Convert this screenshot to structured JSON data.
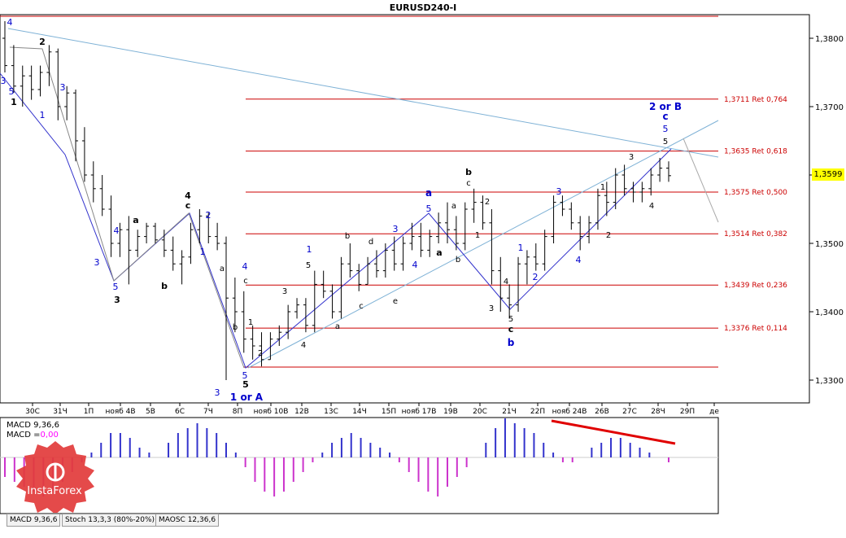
{
  "window": {
    "title": "EURUSD240-I"
  },
  "current_price": "1,3599",
  "chart_data": {
    "type": "candlestick",
    "symbol": "EURUSD240-I",
    "y_ticks": [
      "1,3800",
      "1,3700",
      "1,3600",
      "1,3500",
      "1,3400",
      "1,3300"
    ],
    "x_ticks": [
      "30С",
      "31Ч",
      "1П",
      "нояб 4В",
      "5В",
      "6С",
      "7Ч",
      "8П",
      "нояб 10В",
      "12В",
      "13С",
      "14Ч",
      "15П",
      "нояб 17В",
      "19В",
      "20С",
      "21Ч",
      "22П",
      "нояб 24В",
      "26В",
      "27С",
      "28Ч",
      "29П",
      "де"
    ],
    "fib_levels": [
      {
        "price": 1.3711,
        "label": "1,3711 Ret 0,764"
      },
      {
        "price": 1.3635,
        "label": "1,3635 Ret 0,618"
      },
      {
        "price": 1.3575,
        "label": "1,3575 Ret 0,500"
      },
      {
        "price": 1.3514,
        "label": "1,3514 Ret 0,382"
      },
      {
        "price": 1.3439,
        "label": "1,3439 Ret 0,236"
      },
      {
        "price": 1.3376,
        "label": "1,3376 Ret 0,114"
      }
    ],
    "ohlc": [
      [
        1.38,
        1.3825,
        1.375,
        1.376
      ],
      [
        1.376,
        1.379,
        1.372,
        1.373
      ],
      [
        1.373,
        1.376,
        1.37,
        1.3745
      ],
      [
        1.3745,
        1.376,
        1.371,
        1.3725
      ],
      [
        1.3725,
        1.376,
        1.3715,
        1.375
      ],
      [
        1.375,
        1.379,
        1.373,
        1.378
      ],
      [
        1.378,
        1.3785,
        1.368,
        1.37
      ],
      [
        1.37,
        1.373,
        1.368,
        1.372
      ],
      [
        1.372,
        1.3725,
        1.362,
        1.365
      ],
      [
        1.365,
        1.367,
        1.359,
        1.36
      ],
      [
        1.36,
        1.362,
        1.356,
        1.358
      ],
      [
        1.358,
        1.36,
        1.354,
        1.355
      ],
      [
        1.355,
        1.357,
        1.348,
        1.35
      ],
      [
        1.35,
        1.353,
        1.348,
        1.352
      ],
      [
        1.352,
        1.354,
        1.344,
        1.349
      ],
      [
        1.349,
        1.352,
        1.348,
        1.351
      ],
      [
        1.351,
        1.353,
        1.35,
        1.3525
      ],
      [
        1.3525,
        1.353,
        1.35,
        1.3505
      ],
      [
        1.3505,
        1.352,
        1.348,
        1.349
      ],
      [
        1.349,
        1.351,
        1.346,
        1.347
      ],
      [
        1.347,
        1.349,
        1.344,
        1.348
      ],
      [
        1.348,
        1.353,
        1.347,
        1.352
      ],
      [
        1.352,
        1.355,
        1.35,
        1.354
      ],
      [
        1.354,
        1.3545,
        1.35,
        1.351
      ],
      [
        1.351,
        1.353,
        1.349,
        1.35
      ],
      [
        1.35,
        1.351,
        1.33,
        1.342
      ],
      [
        1.342,
        1.345,
        1.337,
        1.34
      ],
      [
        1.34,
        1.343,
        1.334,
        1.336
      ],
      [
        1.336,
        1.338,
        1.333,
        1.335
      ],
      [
        1.335,
        1.337,
        1.332,
        1.333
      ],
      [
        1.333,
        1.337,
        1.333,
        1.336
      ],
      [
        1.336,
        1.338,
        1.335,
        1.337
      ],
      [
        1.337,
        1.341,
        1.336,
        1.34
      ],
      [
        1.34,
        1.342,
        1.339,
        1.341
      ],
      [
        1.341,
        1.342,
        1.337,
        1.338
      ],
      [
        1.338,
        1.346,
        1.337,
        1.344
      ],
      [
        1.344,
        1.346,
        1.342,
        1.343
      ],
      [
        1.343,
        1.344,
        1.339,
        1.34
      ],
      [
        1.34,
        1.348,
        1.339,
        1.347
      ],
      [
        1.347,
        1.35,
        1.345,
        1.346
      ],
      [
        1.346,
        1.347,
        1.343,
        1.344
      ],
      [
        1.344,
        1.348,
        1.344,
        1.347
      ],
      [
        1.347,
        1.349,
        1.345,
        1.346
      ],
      [
        1.346,
        1.35,
        1.345,
        1.349
      ],
      [
        1.349,
        1.351,
        1.346,
        1.347
      ],
      [
        1.347,
        1.351,
        1.346,
        1.35
      ],
      [
        1.35,
        1.353,
        1.349,
        1.351
      ],
      [
        1.351,
        1.353,
        1.348,
        1.349
      ],
      [
        1.349,
        1.352,
        1.348,
        1.351
      ],
      [
        1.351,
        1.3545,
        1.35,
        1.353
      ],
      [
        1.353,
        1.356,
        1.35,
        1.352
      ],
      [
        1.352,
        1.354,
        1.349,
        1.35
      ],
      [
        1.35,
        1.356,
        1.349,
        1.355
      ],
      [
        1.355,
        1.358,
        1.353,
        1.356
      ],
      [
        1.356,
        1.357,
        1.352,
        1.353
      ],
      [
        1.353,
        1.355,
        1.344,
        1.346
      ],
      [
        1.346,
        1.348,
        1.34,
        1.342
      ],
      [
        1.342,
        1.344,
        1.339,
        1.341
      ],
      [
        1.341,
        1.348,
        1.34,
        1.347
      ],
      [
        1.347,
        1.349,
        1.344,
        1.348
      ],
      [
        1.348,
        1.35,
        1.346,
        1.347
      ],
      [
        1.347,
        1.352,
        1.346,
        1.351
      ],
      [
        1.351,
        1.357,
        1.35,
        1.356
      ],
      [
        1.356,
        1.357,
        1.354,
        1.355
      ],
      [
        1.355,
        1.356,
        1.352,
        1.353
      ],
      [
        1.353,
        1.354,
        1.349,
        1.351
      ],
      [
        1.351,
        1.354,
        1.35,
        1.353
      ],
      [
        1.353,
        1.358,
        1.352,
        1.357
      ],
      [
        1.357,
        1.359,
        1.354,
        1.356
      ],
      [
        1.356,
        1.361,
        1.355,
        1.36
      ],
      [
        1.36,
        1.3615,
        1.357,
        1.358
      ],
      [
        1.358,
        1.359,
        1.356,
        1.3575
      ],
      [
        1.3575,
        1.359,
        1.356,
        1.358
      ],
      [
        1.358,
        1.361,
        1.357,
        1.36
      ],
      [
        1.36,
        1.3625,
        1.359,
        1.361
      ],
      [
        1.361,
        1.362,
        1.359,
        1.3599
      ]
    ],
    "macd": {
      "label1": "MACD 9,36,6",
      "label2": "MACD =",
      "label2_value": "0,00",
      "histogram": [
        -0.4,
        -0.5,
        -0.6,
        -0.7,
        -0.8,
        -0.7,
        -0.5,
        -0.3,
        -0.1,
        0.1,
        0.3,
        0.5,
        0.5,
        0.4,
        0.2,
        0.1,
        0.0,
        0.3,
        0.5,
        0.6,
        0.7,
        0.6,
        0.5,
        0.3,
        0.1,
        -0.2,
        -0.5,
        -0.7,
        -0.8,
        -0.7,
        -0.5,
        -0.3,
        -0.1,
        0.1,
        0.3,
        0.4,
        0.5,
        0.4,
        0.3,
        0.2,
        0.1,
        -0.1,
        -0.3,
        -0.5,
        -0.7,
        -0.8,
        -0.6,
        -0.4,
        -0.2,
        0.0,
        0.3,
        0.6,
        0.8,
        0.7,
        0.6,
        0.5,
        0.3,
        0.1,
        -0.1,
        -0.1,
        0.0,
        0.2,
        0.3,
        0.4,
        0.4,
        0.3,
        0.2,
        0.1,
        0.0,
        -0.1
      ]
    },
    "indicator_tabs": [
      "MACD 9,36,6",
      "Stoch 13,3,3 (80%-20%)",
      "MAOSC 12,36,6"
    ]
  },
  "wave_labels": {
    "black": [
      "1",
      "2",
      "3",
      "4",
      "5",
      "a",
      "b",
      "c",
      "d",
      "e"
    ],
    "blue": [
      "1",
      "2",
      "3",
      "4",
      "5",
      "a",
      "b",
      "c"
    ],
    "major": [
      "1 or A",
      "2 or B"
    ]
  },
  "logo": {
    "text": "InstaForex"
  }
}
